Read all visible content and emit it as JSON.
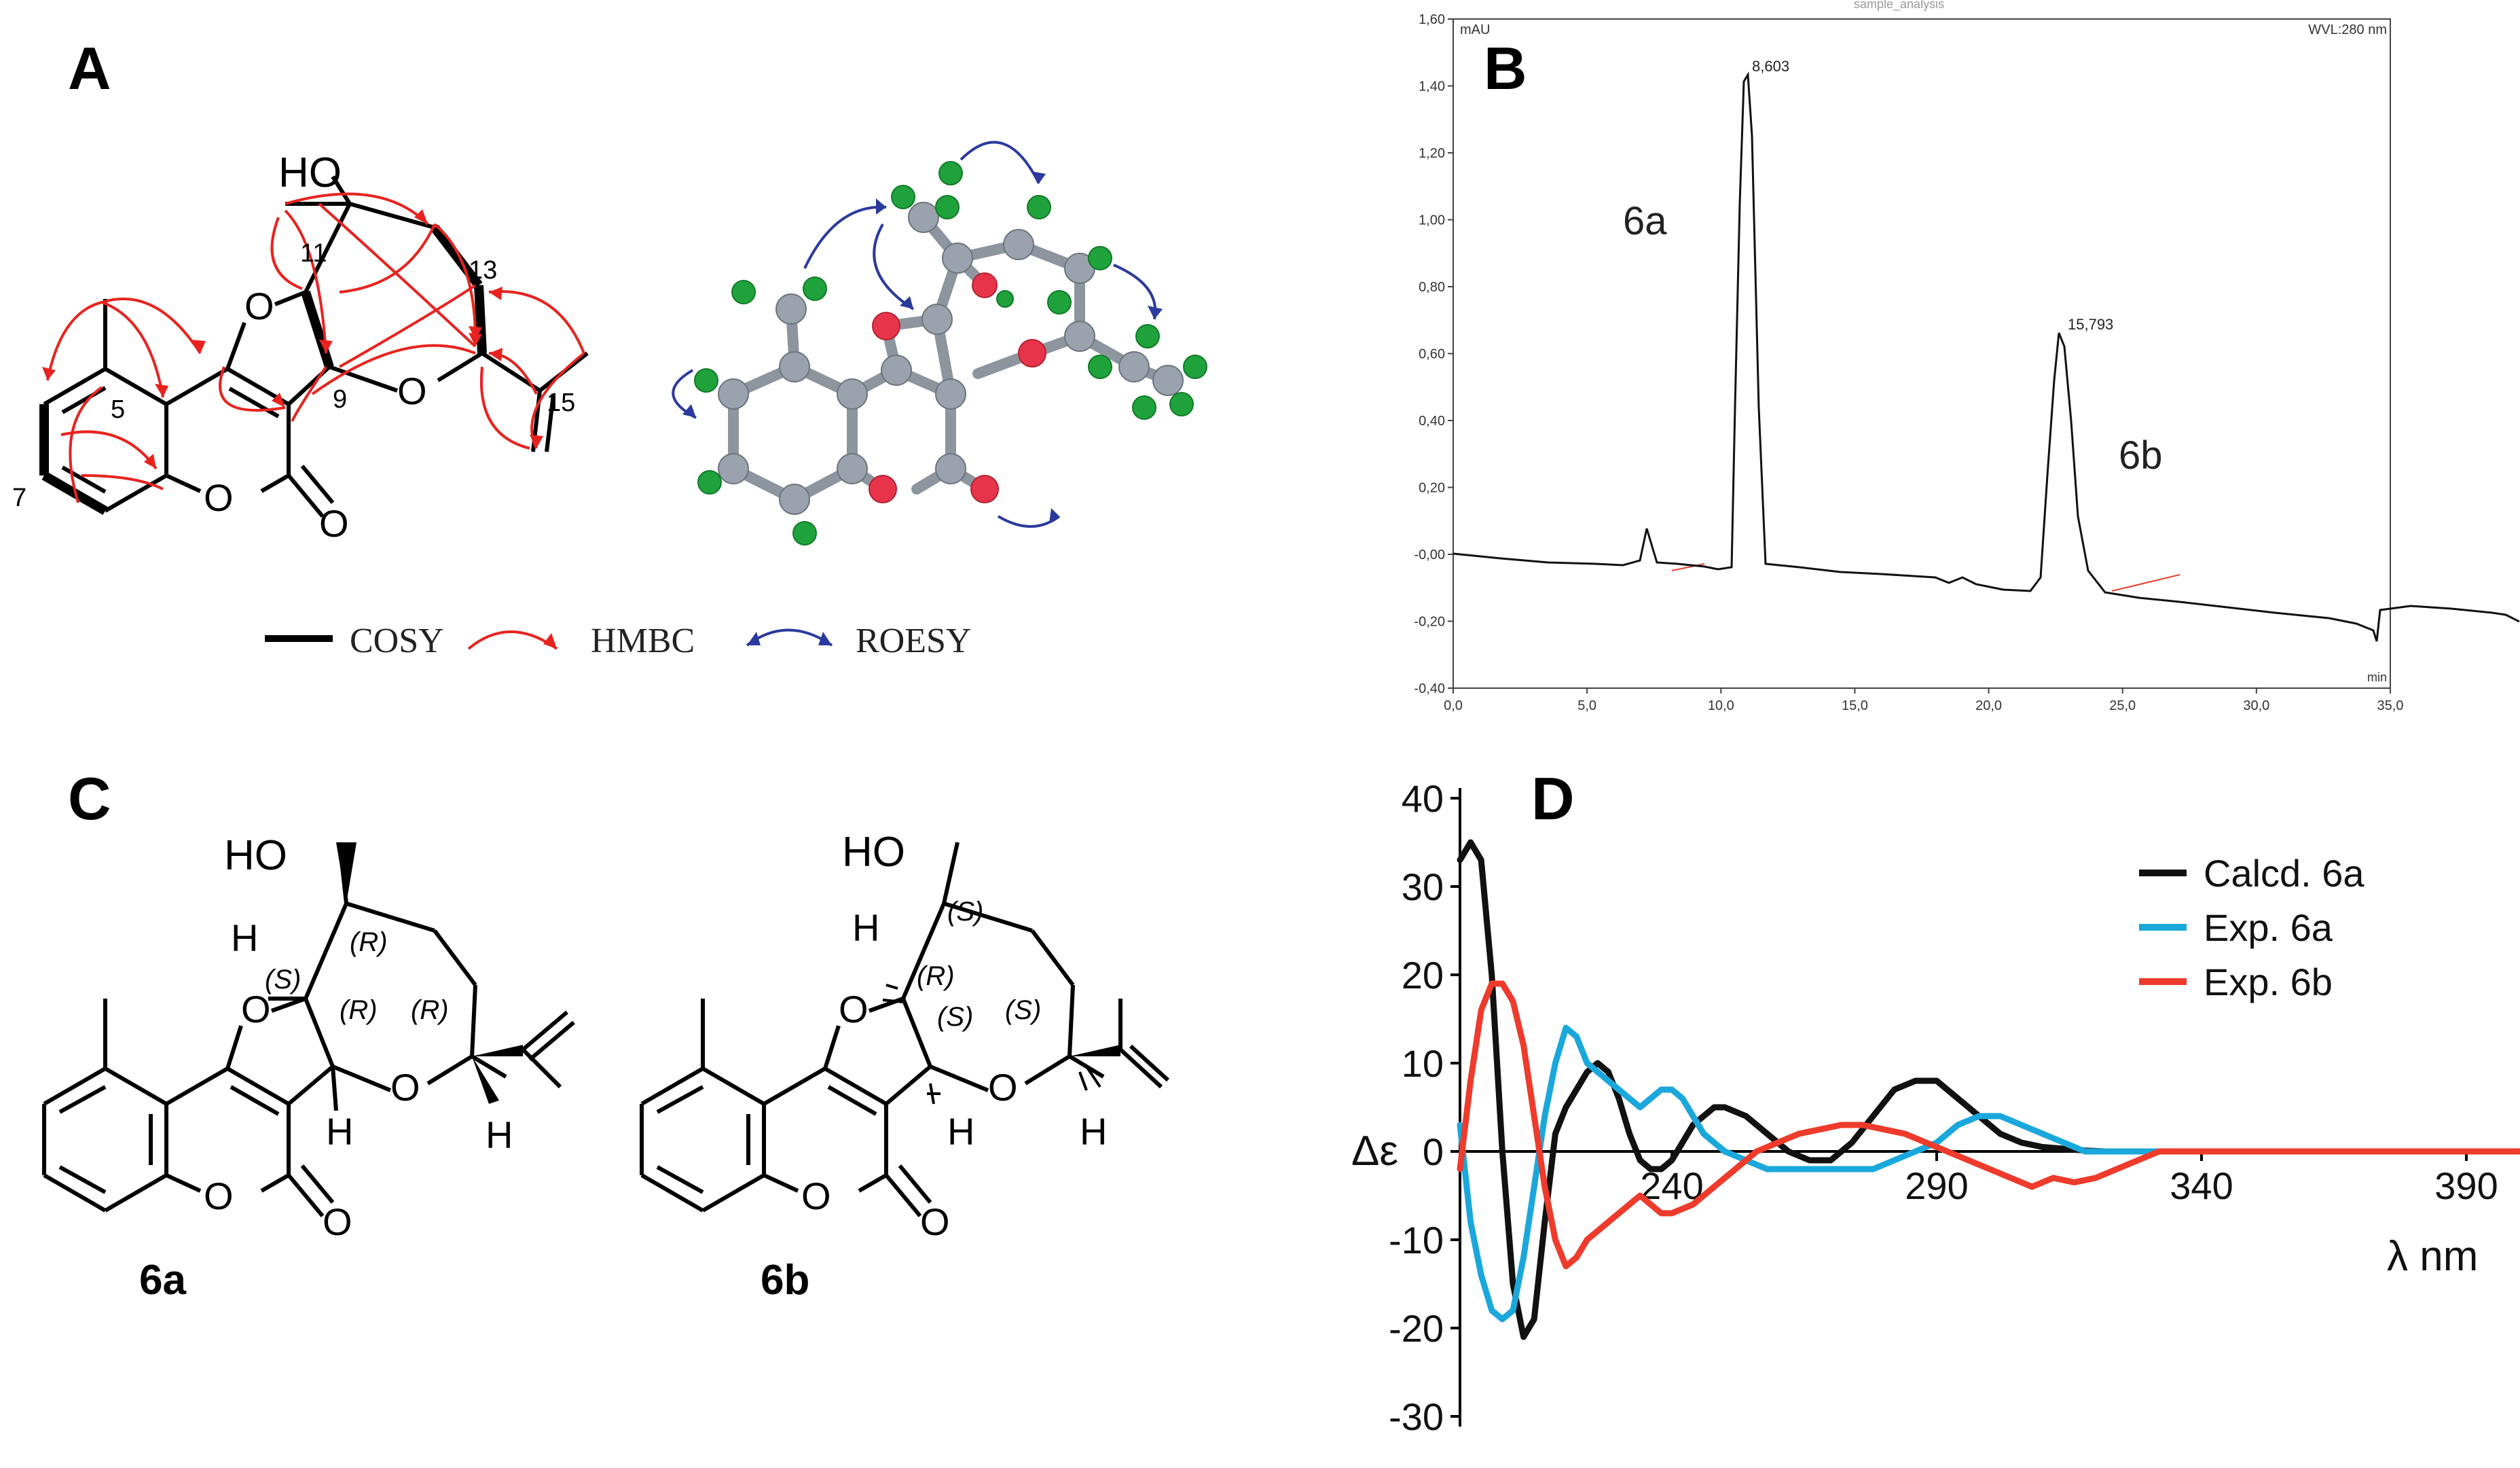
{
  "panel_labels": {
    "a": "A",
    "b": "B",
    "c": "C",
    "d": "D"
  },
  "panel_a": {
    "atom_labels": {
      "ho": "HO",
      "o1": "O",
      "o2": "O",
      "o3": "O",
      "o4": "O",
      "n5": "5",
      "n7": "7",
      "n9": "9",
      "n11": "11",
      "n13": "13",
      "n15": "15"
    },
    "legend": {
      "cosy": "COSY",
      "hmbc": "HMBC",
      "roesy": "ROESY"
    },
    "colors": {
      "hmbc": "#e8231f",
      "roesy": "#2b3a9e",
      "carbon": "#9aa3ad",
      "hydrogen": "#1fa23c",
      "oxygen": "#e8344a"
    }
  },
  "panel_b": {
    "header": {
      "left": "mAU",
      "right": "WVL:280 nm",
      "top_right": "…",
      "top_mid": "sample_analysis"
    },
    "x_unit": "min",
    "y_ticks": [
      "1,60",
      "1,40",
      "1,20",
      "1,00",
      "0,80",
      "0,60",
      "0,40",
      "0,20",
      "-0,00",
      "-0,20",
      "-0,40"
    ],
    "x_ticks": [
      "0,0",
      "5,0",
      "10,0",
      "15,0",
      "20,0",
      "25,0",
      "30,0",
      "35,0"
    ],
    "peaks": [
      {
        "label": "6a",
        "rt_label": "8,603"
      },
      {
        "label": "6b",
        "rt_label": "15,793"
      }
    ]
  },
  "panel_c": {
    "compounds": [
      "6a",
      "6b"
    ],
    "labels_6a": {
      "ho": "HO",
      "h1": "H",
      "h2": "H",
      "h3": "H",
      "o1": "O",
      "o2": "O",
      "o3": "O",
      "o4": "O",
      "s1": "(S)",
      "r1": "(R)",
      "r2": "(R)",
      "r3": "(R)"
    },
    "labels_6b": {
      "ho": "HO",
      "h1": "H",
      "h2": "H",
      "h3": "H",
      "o1": "O",
      "o2": "O",
      "o3": "O",
      "o4": "O",
      "s1": "(S)",
      "r1": "(R)",
      "s2": "(S)",
      "s3": "(S)"
    }
  },
  "chart_data": {
    "type": "line",
    "title": "",
    "xlabel": "λ nm",
    "ylabel": "Δε",
    "xlim": [
      200,
      400
    ],
    "ylim": [
      -30,
      40
    ],
    "x_ticks": [
      "240",
      "290",
      "340",
      "390"
    ],
    "y_ticks": [
      "40",
      "30",
      "20",
      "10",
      "0",
      "-10",
      "-20",
      "-30"
    ],
    "legend": "top-right",
    "series": [
      {
        "name": "Calcd. 6a",
        "color": "#111111",
        "x": [
          200,
          202,
          204,
          206,
          208,
          210,
          212,
          214,
          216,
          218,
          220,
          222,
          224,
          226,
          228,
          230,
          232,
          234,
          236,
          238,
          240,
          242,
          244,
          246,
          248,
          250,
          254,
          258,
          262,
          266,
          270,
          274,
          278,
          282,
          286,
          290,
          294,
          298,
          302,
          306,
          310,
          314,
          318,
          322,
          326,
          330,
          340,
          360,
          380,
          400
        ],
        "y": [
          33,
          35,
          33,
          20,
          0,
          -15,
          -21,
          -19,
          -8,
          2,
          5,
          7,
          9,
          10,
          9,
          6,
          2,
          -1,
          -2,
          -2,
          -1,
          1,
          3,
          4,
          5,
          5,
          4,
          2,
          0,
          -1,
          -1,
          1,
          4,
          7,
          8,
          8,
          6,
          4,
          2,
          1,
          0.5,
          0.3,
          0.1,
          0,
          0,
          0,
          0,
          0,
          0,
          0
        ]
      },
      {
        "name": "Exp. 6a",
        "color": "#1aa8dc",
        "x": [
          200,
          202,
          204,
          206,
          208,
          210,
          212,
          214,
          216,
          218,
          220,
          222,
          224,
          226,
          228,
          230,
          232,
          234,
          236,
          238,
          240,
          242,
          244,
          246,
          250,
          254,
          258,
          262,
          266,
          270,
          274,
          278,
          282,
          286,
          290,
          294,
          298,
          302,
          306,
          310,
          314,
          318,
          322,
          326,
          330,
          334,
          340,
          360,
          380,
          400
        ],
        "y": [
          3,
          -8,
          -14,
          -18,
          -19,
          -18,
          -12,
          -4,
          4,
          10,
          14,
          13,
          10,
          9,
          8,
          7,
          6,
          5,
          6,
          7,
          7,
          6,
          4,
          2,
          0,
          -1,
          -2,
          -2,
          -2,
          -2,
          -2,
          -2,
          -1,
          0,
          1,
          3,
          4,
          4,
          3,
          2,
          1,
          0,
          0,
          0,
          0,
          0,
          0,
          0,
          0,
          0
        ]
      },
      {
        "name": "Exp. 6b",
        "color": "#ee3b2b",
        "x": [
          200,
          202,
          204,
          206,
          208,
          210,
          212,
          214,
          216,
          218,
          220,
          222,
          224,
          226,
          228,
          230,
          232,
          234,
          236,
          238,
          240,
          244,
          248,
          252,
          256,
          260,
          264,
          268,
          272,
          276,
          280,
          284,
          288,
          292,
          296,
          300,
          304,
          308,
          312,
          316,
          320,
          324,
          328,
          332,
          336,
          340,
          350,
          370,
          390,
          400
        ],
        "y": [
          -2,
          8,
          16,
          19,
          19,
          17,
          12,
          4,
          -4,
          -10,
          -13,
          -12,
          -10,
          -9,
          -8,
          -7,
          -6,
          -5,
          -6,
          -7,
          -7,
          -6,
          -4,
          -2,
          0,
          1,
          2,
          2.5,
          3,
          3,
          2.5,
          2,
          1,
          0,
          -1,
          -2,
          -3,
          -4,
          -3,
          -3.5,
          -3,
          -2,
          -1,
          0,
          0,
          0,
          0,
          0,
          0,
          0
        ]
      }
    ]
  }
}
